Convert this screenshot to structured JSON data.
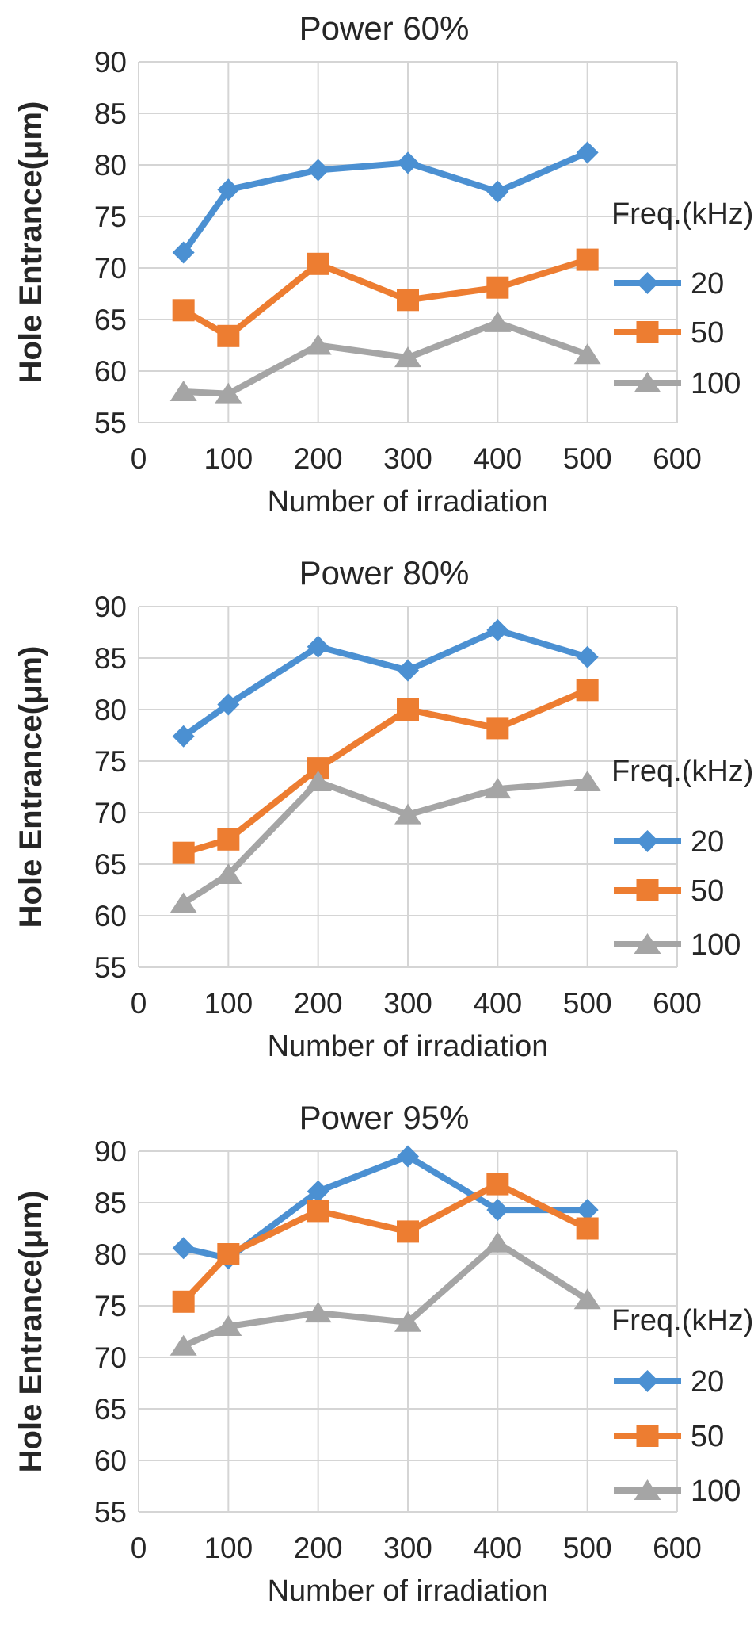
{
  "figure": {
    "description_note": "Three stacked line charts of hole entrance diameter vs number of irradiation at different laser powers"
  },
  "chart_data": [
    {
      "type": "line",
      "title": "Power 60%",
      "xlabel": "Number of irradiation",
      "ylabel": "Hole Entrance(μm)",
      "legend_title": "Freq.(kHz)",
      "legend_position": "middle-right",
      "grid": true,
      "x": [
        50,
        100,
        200,
        300,
        400,
        500
      ],
      "xlim": [
        0,
        600
      ],
      "ylim": [
        55,
        90
      ],
      "xticks": [
        0,
        100,
        200,
        300,
        400,
        500,
        600
      ],
      "yticks": [
        55,
        60,
        65,
        70,
        75,
        80,
        85,
        90
      ],
      "series": [
        {
          "name": "20",
          "color": "#4B90D2",
          "marker": "diamond",
          "values": [
            71.5,
            77.6,
            79.5,
            80.2,
            77.4,
            81.2
          ]
        },
        {
          "name": "50",
          "color": "#ED7D31",
          "marker": "square",
          "values": [
            65.9,
            63.4,
            70.4,
            66.9,
            68.1,
            70.8
          ]
        },
        {
          "name": "100",
          "color": "#A5A5A5",
          "marker": "triangle",
          "values": [
            58.0,
            57.8,
            62.5,
            61.3,
            64.7,
            61.6
          ]
        }
      ]
    },
    {
      "type": "line",
      "title": "Power 80%",
      "xlabel": "Number of irradiation",
      "ylabel": "Hole Entrance(μm)",
      "legend_title": "Freq.(kHz)",
      "legend_position": "middle-right",
      "grid": true,
      "x": [
        50,
        100,
        200,
        300,
        400,
        500
      ],
      "xlim": [
        0,
        600
      ],
      "ylim": [
        55,
        90
      ],
      "xticks": [
        0,
        100,
        200,
        300,
        400,
        500,
        600
      ],
      "yticks": [
        55,
        60,
        65,
        70,
        75,
        80,
        85,
        90
      ],
      "series": [
        {
          "name": "20",
          "color": "#4B90D2",
          "marker": "diamond",
          "values": [
            77.4,
            80.5,
            86.1,
            83.8,
            87.7,
            85.1
          ]
        },
        {
          "name": "50",
          "color": "#ED7D31",
          "marker": "square",
          "values": [
            66.1,
            67.4,
            74.3,
            80.0,
            78.2,
            81.9
          ]
        },
        {
          "name": "100",
          "color": "#A5A5A5",
          "marker": "triangle",
          "values": [
            61.2,
            64.0,
            73.0,
            69.8,
            72.3,
            73.0
          ]
        }
      ]
    },
    {
      "type": "line",
      "title": "Power 95%",
      "xlabel": "Number of irradiation",
      "ylabel": "Hole Entrance(μm)",
      "legend_title": "Freq.(kHz)",
      "legend_position": "bottom-right",
      "grid": true,
      "x": [
        50,
        100,
        200,
        300,
        400,
        500
      ],
      "xlim": [
        0,
        600
      ],
      "ylim": [
        55,
        90
      ],
      "xticks": [
        0,
        100,
        200,
        300,
        400,
        500,
        600
      ],
      "yticks": [
        55,
        60,
        65,
        70,
        75,
        80,
        85,
        90
      ],
      "series": [
        {
          "name": "20",
          "color": "#4B90D2",
          "marker": "diamond",
          "values": [
            80.6,
            79.6,
            86.1,
            89.5,
            84.3,
            84.3
          ]
        },
        {
          "name": "50",
          "color": "#ED7D31",
          "marker": "square",
          "values": [
            75.4,
            80.0,
            84.2,
            82.2,
            86.8,
            82.5
          ]
        },
        {
          "name": "100",
          "color": "#A5A5A5",
          "marker": "triangle",
          "values": [
            71.1,
            73.0,
            74.3,
            73.4,
            81.1,
            75.6
          ]
        }
      ]
    }
  ],
  "style": {
    "gridline_color": "#D5D5D5",
    "text_color": "#262626",
    "background_color": "#FFFFFF"
  }
}
